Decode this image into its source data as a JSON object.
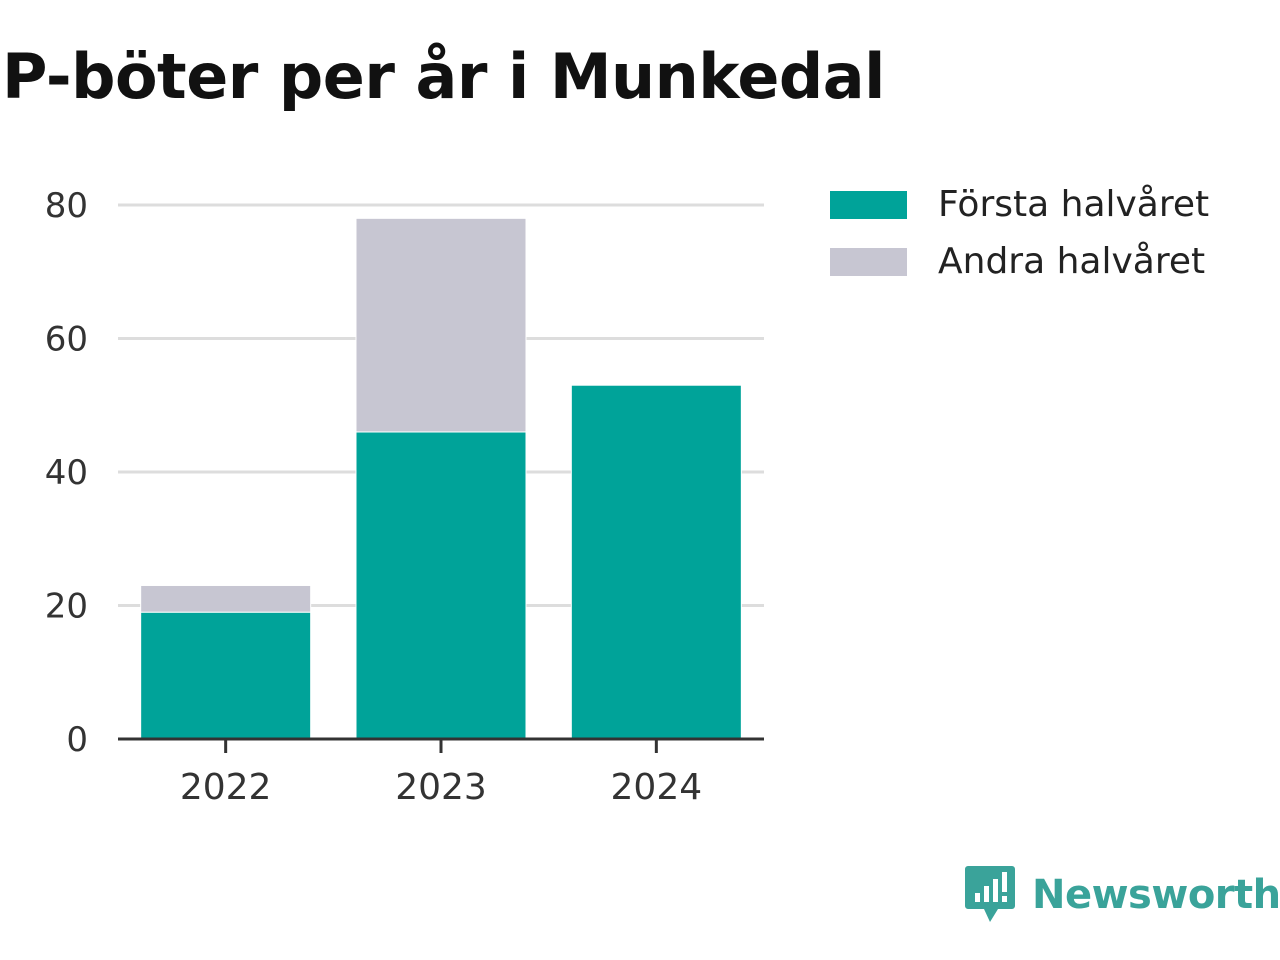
{
  "chart_data": {
    "type": "bar",
    "stacked": true,
    "title": "P-böter per år i Munkedal",
    "categories": [
      "2022",
      "2023",
      "2024"
    ],
    "series": [
      {
        "name": "Första halvåret",
        "values": [
          19,
          46,
          53
        ],
        "color": "#00a399"
      },
      {
        "name": "Andra halvåret",
        "values": [
          4,
          32,
          0
        ],
        "color": "#c7c6d2"
      }
    ],
    "ylim": [
      0,
      80
    ],
    "yticks": [
      0,
      20,
      40,
      60,
      80
    ],
    "grid": true,
    "legend_position": "top-right"
  },
  "brand": {
    "name": "Newsworthy",
    "logo_icon": "newsworthy-logo-icon",
    "color": "#3aa39a"
  }
}
